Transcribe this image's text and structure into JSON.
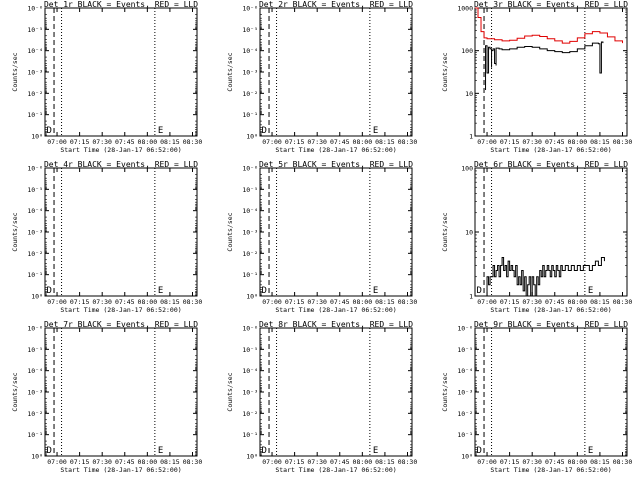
{
  "window": {
    "width_label": "640",
    "height_label": "480"
  },
  "colors": {
    "events": "#000000",
    "lld": "#e00000",
    "background": "#ffffff"
  },
  "chart_data": [
    {
      "type": "line",
      "title": "Det 1r BLACK = Events, RED = LLD",
      "xlabel": "Start Time (28-Jan-17 06:52:00)",
      "ylabel": "Counts/sec",
      "y_scale": "log",
      "ylim": [
        1,
        1e-06
      ],
      "yticks": [
        "10⁻⁶",
        "10⁻⁵",
        "10⁻⁴",
        "10⁻³",
        "10⁻²",
        "10⁻¹",
        "10⁰"
      ],
      "xticks": [
        "07:00",
        "07:15",
        "07:30",
        "07:45",
        "08:00",
        "08:15",
        "08:30"
      ],
      "xticks_drawn": [
        "07:00",
        "07:15",
        "07:30",
        "07:45",
        "08:00",
        "08:15",
        "08:30"
      ],
      "xlim": [
        "06:52",
        "08:33"
      ],
      "dashed_line": "06:58",
      "dotted_lines": [
        "07:03",
        "08:05",
        "08:33"
      ],
      "markers": [
        {
          "text": "D",
          "x": "06:53"
        },
        {
          "text": "E",
          "x": "08:07"
        }
      ],
      "series": []
    },
    {
      "type": "line",
      "title": "Det 2r BLACK = Events, RED = LLD",
      "xlabel": "Start Time (28-Jan-17 06:52:00)",
      "ylabel": "Counts/sec",
      "y_scale": "log",
      "ylim": [
        1,
        1e-06
      ],
      "yticks": [
        "10⁻⁶",
        "10⁻⁵",
        "10⁻⁴",
        "10⁻³",
        "10⁻²",
        "10⁻¹",
        "10⁰"
      ],
      "xticks": [
        "07:00",
        "07:15",
        "07:30",
        "07:45",
        "08:00",
        "08:15",
        "08:30"
      ],
      "xticks_drawn": [
        "07:00",
        "07:15",
        "07:30",
        "07:45",
        "08:00",
        "08:15",
        "08:30"
      ],
      "xlim": [
        "06:52",
        "08:33"
      ],
      "dashed_line": "06:58",
      "dotted_lines": [
        "07:03",
        "08:05",
        "08:33"
      ],
      "markers": [
        {
          "text": "D",
          "x": "06:53"
        },
        {
          "text": "E",
          "x": "08:07"
        }
      ],
      "series": []
    },
    {
      "type": "line",
      "title": "Det 3r BLACK = Events, RED = LLD",
      "xlabel": "Start Time (28-Jan-17 06:52:00)",
      "ylabel": "Counts/sec",
      "y_scale": "log",
      "ylim": [
        1,
        1000
      ],
      "yticks": [
        "1000",
        "100",
        "10",
        "1"
      ],
      "xticks": [
        "07:00",
        "07:15",
        "07:30",
        "07:45",
        "08:00",
        "08:15",
        "08:30"
      ],
      "xticks_drawn": [
        "07:00",
        "07:15",
        "07:30",
        "07:45",
        "08:00",
        "08:15",
        "08:30"
      ],
      "xlim": [
        "06:52",
        "08:33"
      ],
      "dashed_line": "06:58",
      "dotted_lines": [
        "07:03",
        "08:05",
        "08:33"
      ],
      "markers": [],
      "series": [
        {
          "color": "lld",
          "x": [
            "06:52",
            "06:54",
            "06:56",
            "06:58",
            "07:00",
            "07:05",
            "07:10",
            "07:15",
            "07:20",
            "07:25",
            "07:30",
            "07:35",
            "07:40",
            "07:45",
            "07:50",
            "07:55",
            "08:00",
            "08:05",
            "08:10",
            "08:15",
            "08:20",
            "08:25",
            "08:30"
          ],
          "values": [
            1100,
            600,
            280,
            200,
            190,
            180,
            170,
            175,
            195,
            220,
            230,
            215,
            190,
            170,
            150,
            165,
            200,
            250,
            280,
            260,
            210,
            170,
            150
          ]
        },
        {
          "color": "events",
          "x": [
            "06:59",
            "06:59",
            "07:00",
            "07:01",
            "07:02",
            "07:03",
            "07:03",
            "07:04",
            "07:05",
            "07:06",
            "07:06",
            "07:08",
            "07:10",
            "07:15",
            "07:20",
            "07:25",
            "07:30",
            "07:35",
            "07:40",
            "07:45",
            "07:50",
            "07:55",
            "08:00",
            "08:05",
            "08:10",
            "08:14",
            "08:15",
            "08:16",
            "08:16",
            "08:17"
          ],
          "values": [
            12,
            130,
            30,
            120,
            110,
            40,
            100,
            110,
            50,
            45,
            115,
            110,
            105,
            110,
            120,
            125,
            120,
            110,
            100,
            95,
            90,
            95,
            110,
            130,
            150,
            145,
            30,
            140,
            160,
            150
          ]
        }
      ]
    },
    {
      "type": "line",
      "title": "Det 4r BLACK = Events, RED = LLD",
      "xlabel": "Start Time (28-Jan-17 06:52:00)",
      "ylabel": "Counts/sec",
      "y_scale": "log",
      "ylim": [
        1,
        1e-06
      ],
      "yticks": [
        "10⁻⁶",
        "10⁻⁵",
        "10⁻⁴",
        "10⁻³",
        "10⁻²",
        "10⁻¹",
        "10⁰"
      ],
      "xticks": [
        "07:00",
        "07:15",
        "07:30",
        "07:45",
        "08:00",
        "08:15",
        "08:30"
      ],
      "xticks_drawn": [
        "07:00",
        "07:15",
        "07:30",
        "07:45",
        "08:00",
        "08:15",
        "08:30"
      ],
      "xlim": [
        "06:52",
        "08:33"
      ],
      "dashed_line": "06:58",
      "dotted_lines": [
        "07:03",
        "08:05",
        "08:33"
      ],
      "markers": [
        {
          "text": "D",
          "x": "06:53"
        },
        {
          "text": "E",
          "x": "08:07"
        }
      ],
      "series": []
    },
    {
      "type": "line",
      "title": "Det 5r BLACK = Events, RED = LLD",
      "xlabel": "Start Time (28-Jan-17 06:52:00)",
      "ylabel": "Counts/sec",
      "y_scale": "log",
      "ylim": [
        1,
        1e-06
      ],
      "yticks": [
        "10⁻⁶",
        "10⁻⁵",
        "10⁻⁴",
        "10⁻³",
        "10⁻²",
        "10⁻¹",
        "10⁰"
      ],
      "xticks": [
        "07:00",
        "07:15",
        "07:30",
        "07:45",
        "08:00",
        "08:15",
        "08:30"
      ],
      "xticks_drawn": [
        "07:00",
        "07:15",
        "07:30",
        "07:45",
        "08:00",
        "08:15",
        "08:30"
      ],
      "xlim": [
        "06:52",
        "08:33"
      ],
      "dashed_line": "06:58",
      "dotted_lines": [
        "07:03",
        "08:05",
        "08:33"
      ],
      "markers": [
        {
          "text": "D",
          "x": "06:53"
        },
        {
          "text": "E",
          "x": "08:07"
        }
      ],
      "series": []
    },
    {
      "type": "line",
      "title": "Det 6r BLACK = Events, RED = LLD",
      "xlabel": "Start Time (28-Jan-17 06:52:00)",
      "ylabel": "Counts/sec",
      "y_scale": "log",
      "ylim": [
        1,
        100
      ],
      "yticks": [
        "100",
        "10",
        "1"
      ],
      "xticks": [
        "07:00",
        "07:15",
        "07:30",
        "07:45",
        "08:00",
        "08:15",
        "08:30"
      ],
      "xticks_drawn": [
        "07:00",
        "07:15",
        "07:30",
        "07:45",
        "08:00",
        "08:15",
        "08:30"
      ],
      "xlim": [
        "06:52",
        "08:33"
      ],
      "dashed_line": "06:58",
      "dotted_lines": [
        "07:03",
        "08:05",
        "08:33"
      ],
      "markers": [
        {
          "text": "D",
          "x": "06:53"
        },
        {
          "text": "E",
          "x": "08:07"
        }
      ],
      "series": [
        {
          "color": "events",
          "x": [
            "06:59",
            "07:00",
            "07:01",
            "07:02",
            "07:03",
            "07:04",
            "07:05",
            "07:06",
            "07:07",
            "07:08",
            "07:09",
            "07:10",
            "07:11",
            "07:12",
            "07:13",
            "07:14",
            "07:15",
            "07:16",
            "07:17",
            "07:18",
            "07:19",
            "07:20",
            "07:21",
            "07:22",
            "07:23",
            "07:24",
            "07:25",
            "07:26",
            "07:27",
            "07:28",
            "07:29",
            "07:30",
            "07:31",
            "07:32",
            "07:33",
            "07:34",
            "07:35",
            "07:36",
            "07:37",
            "07:38",
            "07:39",
            "07:40",
            "07:41",
            "07:42",
            "07:43",
            "07:44",
            "07:45",
            "07:46",
            "07:47",
            "07:48",
            "07:49",
            "07:50",
            "07:52",
            "07:54",
            "07:56",
            "07:58",
            "08:00",
            "08:02",
            "08:04",
            "08:06",
            "08:08",
            "08:10",
            "08:12",
            "08:14",
            "08:16",
            "08:18"
          ],
          "values": [
            1,
            2,
            1.5,
            2,
            2,
            3,
            2,
            2.5,
            3,
            2,
            3,
            4,
            2.5,
            3,
            2,
            3.5,
            2.5,
            3,
            2.5,
            2,
            3,
            1.5,
            2,
            1.5,
            2.5,
            1.2,
            2,
            1,
            1.5,
            2,
            1,
            2,
            1.5,
            1,
            2,
            1.5,
            2.5,
            2,
            3,
            2,
            2.5,
            3,
            2.5,
            2,
            3,
            2.5,
            2,
            3,
            2.5,
            2,
            3,
            2.5,
            3,
            2.5,
            3,
            2.5,
            3,
            2.5,
            3,
            3,
            2.5,
            3,
            3.5,
            3,
            4,
            3.5
          ]
        }
      ]
    },
    {
      "type": "line",
      "title": "Det 7r BLACK = Events, RED = LLD",
      "xlabel": "Start Time (28-Jan-17 06:52:00)",
      "ylabel": "Counts/sec",
      "y_scale": "log",
      "ylim": [
        1,
        1e-06
      ],
      "yticks": [
        "10⁻⁶",
        "10⁻⁵",
        "10⁻⁴",
        "10⁻³",
        "10⁻²",
        "10⁻¹",
        "10⁰"
      ],
      "xticks": [
        "07:00",
        "07:15",
        "07:30",
        "07:45",
        "08:00",
        "08:15",
        "08:30"
      ],
      "xticks_drawn": [
        "07:00",
        "07:15",
        "07:30",
        "07:45",
        "08:00",
        "08:15",
        "08:30"
      ],
      "xlim": [
        "06:52",
        "08:33"
      ],
      "dashed_line": "06:58",
      "dotted_lines": [
        "07:03",
        "08:05",
        "08:33"
      ],
      "markers": [
        {
          "text": "D",
          "x": "06:53"
        },
        {
          "text": "E",
          "x": "08:07"
        }
      ],
      "series": []
    },
    {
      "type": "line",
      "title": "Det 8r BLACK = Events, RED = LLD",
      "xlabel": "Start Time (28-Jan-17 06:52:00)",
      "ylabel": "Counts/sec",
      "y_scale": "log",
      "ylim": [
        1,
        1e-06
      ],
      "yticks": [
        "10⁻⁶",
        "10⁻⁵",
        "10⁻⁴",
        "10⁻³",
        "10⁻²",
        "10⁻¹",
        "10⁰"
      ],
      "xticks": [
        "07:00",
        "07:15",
        "07:30",
        "07:45",
        "08:00",
        "08:15",
        "08:30"
      ],
      "xticks_drawn": [
        "07:00",
        "07:15",
        "07:30",
        "07:45",
        "08:00",
        "08:15",
        "08:30"
      ],
      "xlim": [
        "06:52",
        "08:33"
      ],
      "dashed_line": "06:58",
      "dotted_lines": [
        "07:03",
        "08:05",
        "08:33"
      ],
      "markers": [
        {
          "text": "D",
          "x": "06:53"
        },
        {
          "text": "E",
          "x": "08:07"
        }
      ],
      "series": []
    },
    {
      "type": "line",
      "title": "Det 9r BLACK = Events, RED = LLD",
      "xlabel": "Start Time (28-Jan-17 06:52:00)",
      "ylabel": "Counts/sec",
      "y_scale": "log",
      "ylim": [
        1,
        1e-06
      ],
      "yticks": [
        "10⁻⁶",
        "10⁻⁵",
        "10⁻⁴",
        "10⁻³",
        "10⁻²",
        "10⁻¹",
        "10⁰"
      ],
      "xticks": [
        "07:00",
        "07:15",
        "07:30",
        "07:45",
        "08:00",
        "08:15",
        "08:30"
      ],
      "xticks_drawn": [
        "07:00",
        "07:15",
        "07:30",
        "07:45",
        "08:00",
        "08:15",
        "08:30"
      ],
      "xlim": [
        "06:52",
        "08:33"
      ],
      "dashed_line": "06:58",
      "dotted_lines": [
        "07:03",
        "08:05",
        "08:33"
      ],
      "markers": [
        {
          "text": "D",
          "x": "06:53"
        },
        {
          "text": "E",
          "x": "08:07"
        }
      ],
      "series": []
    }
  ]
}
